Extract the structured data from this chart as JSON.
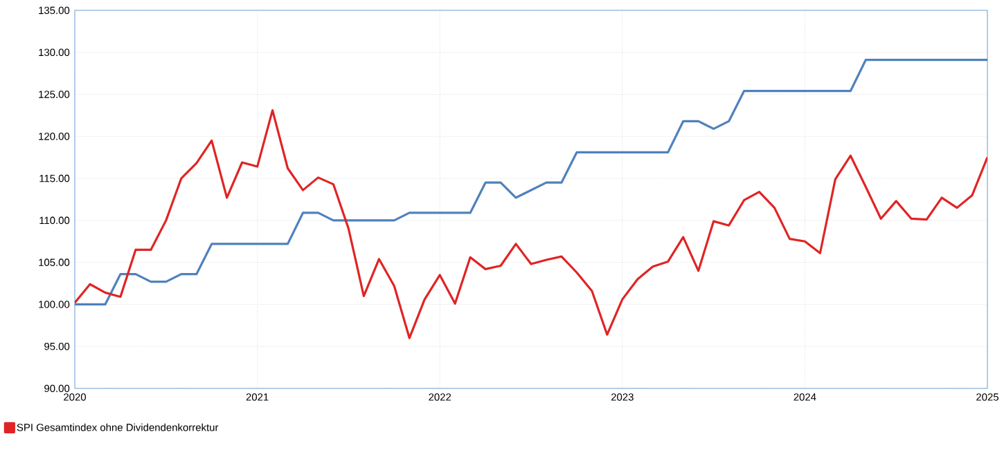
{
  "chart_data": {
    "type": "line",
    "x": [
      "2020-01",
      "2020-02",
      "2020-03",
      "2020-04",
      "2020-05",
      "2020-06",
      "2020-07",
      "2020-08",
      "2020-09",
      "2020-10",
      "2020-11",
      "2020-12",
      "2021-01",
      "2021-02",
      "2021-03",
      "2021-04",
      "2021-05",
      "2021-06",
      "2021-07",
      "2021-08",
      "2021-09",
      "2021-10",
      "2021-11",
      "2021-12",
      "2022-01",
      "2022-02",
      "2022-03",
      "2022-04",
      "2022-05",
      "2022-06",
      "2022-07",
      "2022-08",
      "2022-09",
      "2022-10",
      "2022-11",
      "2022-12",
      "2023-01",
      "2023-02",
      "2023-03",
      "2023-04",
      "2023-05",
      "2023-06",
      "2023-07",
      "2023-08",
      "2023-09",
      "2023-10",
      "2023-11",
      "2023-12",
      "2024-01",
      "2024-02",
      "2024-03",
      "2024-04",
      "2024-05",
      "2024-06",
      "2024-07",
      "2024-08",
      "2024-09",
      "2024-10",
      "2024-11",
      "2024-12",
      "2025-01"
    ],
    "series": [
      {
        "color": "#4f81bd",
        "values": [
          100.0,
          100.0,
          100.0,
          103.6,
          103.6,
          102.7,
          102.7,
          103.6,
          103.6,
          107.2,
          107.2,
          107.2,
          107.2,
          107.2,
          107.2,
          110.9,
          110.9,
          110.0,
          110.0,
          110.0,
          110.0,
          110.0,
          110.9,
          110.9,
          110.9,
          110.9,
          110.9,
          114.5,
          114.5,
          112.7,
          113.6,
          114.5,
          114.5,
          118.1,
          118.1,
          118.1,
          118.1,
          118.1,
          118.1,
          118.1,
          121.8,
          121.8,
          120.9,
          121.8,
          125.4,
          125.4,
          125.4,
          125.4,
          125.4,
          125.4,
          125.4,
          125.4,
          129.1,
          129.1,
          129.1,
          129.1,
          129.1,
          129.1,
          129.1,
          129.1,
          129.1
        ]
      },
      {
        "name": "SPI Gesamtindex ohne Dividendenkorrektur",
        "color": "#e02424",
        "values": [
          100.2,
          102.4,
          101.4,
          100.9,
          106.5,
          106.5,
          110.0,
          115.0,
          116.8,
          119.5,
          112.7,
          116.9,
          116.4,
          123.1,
          116.2,
          113.6,
          115.1,
          114.3,
          109.0,
          101.0,
          105.4,
          102.2,
          96.0,
          100.6,
          103.5,
          100.1,
          105.6,
          104.2,
          104.6,
          107.2,
          104.8,
          105.3,
          105.7,
          103.8,
          101.6,
          96.4,
          100.6,
          103.0,
          104.5,
          105.1,
          108.0,
          104.0,
          109.9,
          109.4,
          112.4,
          113.4,
          111.5,
          107.8,
          107.5,
          106.1,
          114.9,
          117.7,
          114.0,
          110.2,
          112.3,
          110.2,
          110.1,
          112.7,
          111.5,
          113.0,
          117.5
        ]
      }
    ],
    "xlim": [
      "2020-01",
      "2025-01"
    ],
    "xticks": [
      {
        "value": "2020-01",
        "label": "2020"
      },
      {
        "value": "2021-01",
        "label": "2021"
      },
      {
        "value": "2022-01",
        "label": "2022"
      },
      {
        "value": "2023-01",
        "label": "2023"
      },
      {
        "value": "2024-01",
        "label": "2024"
      },
      {
        "value": "2025-01",
        "label": "2025"
      }
    ],
    "ylim": [
      90,
      135
    ],
    "yticks": [
      {
        "value": 90,
        "label": "90.00"
      },
      {
        "value": 95,
        "label": "95.00"
      },
      {
        "value": 100,
        "label": "100.00"
      },
      {
        "value": 105,
        "label": "105.00"
      },
      {
        "value": 110,
        "label": "110.00"
      },
      {
        "value": 115,
        "label": "115.00"
      },
      {
        "value": 120,
        "label": "120.00"
      },
      {
        "value": 125,
        "label": "125.00"
      },
      {
        "value": 130,
        "label": "130.00"
      },
      {
        "value": 135,
        "label": "135.00"
      }
    ],
    "grid": true,
    "legend": "bottom",
    "marker": "none",
    "line_style": "solid"
  }
}
